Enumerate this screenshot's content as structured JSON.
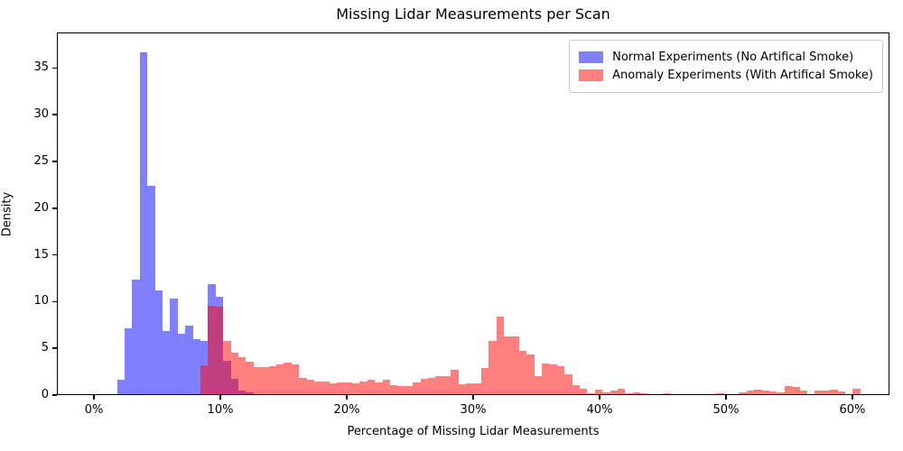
{
  "title": "Missing Lidar Measurements per Scan",
  "xlabel": "Percentage of Missing Lidar Measurements",
  "ylabel": "Density",
  "legend": [
    {
      "label": "Normal Experiments (No Artifical Smoke)",
      "color": "#7f7fff"
    },
    {
      "label": "Anomaly Experiments (With Artifical Smoke)",
      "color": "#ff7f7f"
    }
  ],
  "chart_data": {
    "type": "bar",
    "subtype": "overlapping-histograms",
    "title": "Missing Lidar Measurements per Scan",
    "xlabel": "Percentage of Missing Lidar Measurements",
    "ylabel": "Density",
    "grid": false,
    "legend_position": "upper right",
    "xlim": [
      -2.93,
      62.93
    ],
    "ylim": [
      0,
      38.8
    ],
    "x_tick_values": [
      0,
      10,
      20,
      30,
      40,
      50,
      60
    ],
    "x_tick_labels": [
      "0%",
      "10%",
      "20%",
      "30%",
      "40%",
      "50%",
      "60%"
    ],
    "y_tick_values": [
      0,
      5,
      10,
      15,
      20,
      25,
      30,
      35
    ],
    "bin_width_pct": 0.6,
    "series": [
      {
        "name": "Normal Experiments (No Artifical Smoke)",
        "fill": "rgba(0,0,255,0.5)",
        "bin_start_pct": 1.76,
        "heights": [
          1.5,
          7.0,
          12.3,
          36.6,
          22.3,
          11.1,
          6.8,
          10.2,
          6.5,
          7.3,
          5.9,
          5.7,
          11.8,
          10.4,
          3.6,
          1.65,
          0.35,
          0.15
        ]
      },
      {
        "name": "Anomaly Experiments (With Artifical Smoke)",
        "fill": "rgba(255,0,0,0.5)",
        "bin_start_pct": 8.36,
        "heights": [
          3.1,
          9.5,
          9.4,
          5.7,
          4.4,
          4.0,
          3.5,
          2.9,
          2.9,
          3.0,
          3.2,
          3.4,
          3.2,
          1.7,
          1.5,
          1.35,
          1.4,
          1.2,
          1.3,
          1.25,
          1.2,
          1.35,
          1.55,
          1.3,
          1.5,
          1.0,
          0.85,
          0.9,
          1.3,
          1.6,
          1.7,
          1.9,
          1.9,
          2.6,
          1.1,
          1.15,
          1.15,
          2.8,
          5.7,
          8.3,
          6.2,
          6.15,
          4.6,
          4.2,
          1.9,
          3.3,
          3.15,
          2.95,
          2.1,
          0.95,
          0.6,
          0.1,
          0.5,
          0.2,
          0.35,
          0.6,
          0.1,
          0.2,
          0.05,
          0,
          0,
          0.13,
          0,
          0,
          0,
          0,
          0,
          0,
          0.13,
          0,
          0,
          0.15,
          0.39,
          0.45,
          0.35,
          0.26,
          0.19,
          0.85,
          0.8,
          0.35,
          0,
          0.35,
          0.4,
          0.45,
          0.3,
          0,
          0.6
        ]
      }
    ]
  }
}
